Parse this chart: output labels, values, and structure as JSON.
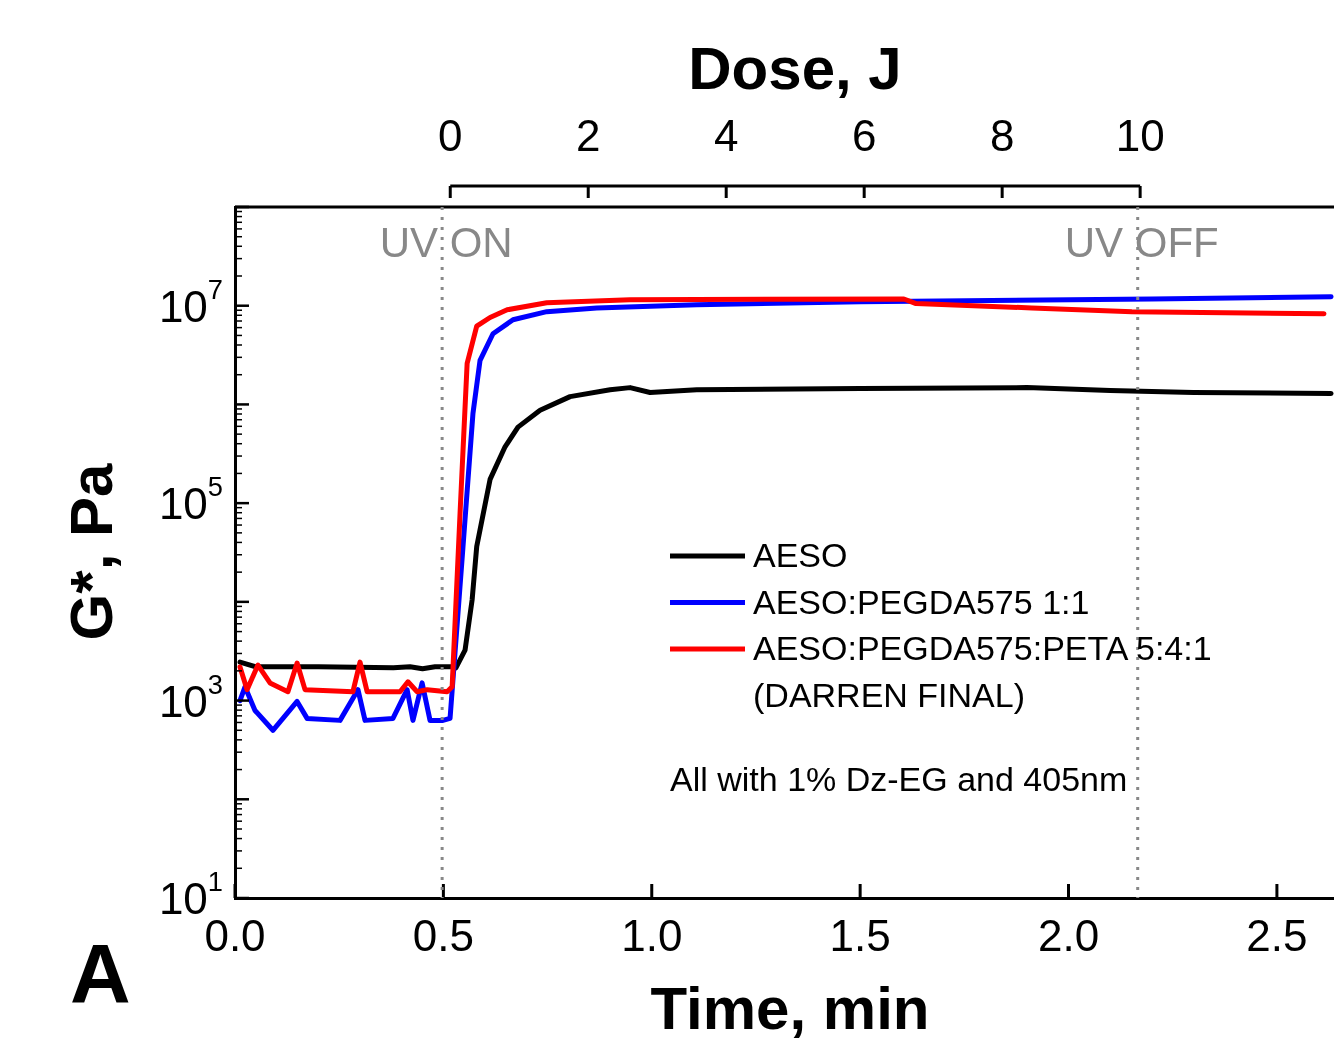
{
  "chart_data": {
    "type": "line",
    "xlabel": "Time, min",
    "ylabel": "G*, Pa",
    "x2label": "Dose, J",
    "xlim": [
      0,
      2.637
    ],
    "xticks": [
      {
        "value": 0,
        "label": "0.0"
      },
      {
        "value": 0.5,
        "label": "0.5"
      },
      {
        "value": 1,
        "label": "1.0"
      },
      {
        "value": 1.5,
        "label": "1.5"
      },
      {
        "value": 2,
        "label": "2.0"
      },
      {
        "value": 2.5,
        "label": "2.5"
      }
    ],
    "x2lim": [
      -3.12,
      12.81
    ],
    "x2ticks": [
      0,
      2,
      4,
      6,
      8,
      10
    ],
    "ylim": [
      10,
      100000000
    ],
    "yticks": [
      {
        "value": 10,
        "label": "10$^{1}$"
      },
      {
        "value": 100,
        "label": null
      },
      {
        "value": 1000,
        "label": "10$^{3}$"
      },
      {
        "value": 10000,
        "label": null
      },
      {
        "value": 100000,
        "label": "10$^{5}$"
      },
      {
        "value": 1000000,
        "label": null
      },
      {
        "value": 10000000,
        "label": "10$^{7}$"
      },
      {
        "value": 100000000,
        "label": null
      }
    ],
    "log": "y",
    "grid": false,
    "legend": "bottom right",
    "marker": "none",
    "line_style": "solid",
    "ref_lines": [
      {
        "axis": "x",
        "value": 0.497,
        "label": "UV ON",
        "color": "#888888",
        "line_style": "dotted"
      },
      {
        "axis": "x",
        "value": 2.166,
        "label": "UV OFF",
        "color": "#888888",
        "line_style": "dotted"
      }
    ],
    "annotations": [
      "All with 1% Dz-EG and 405nm",
      "A"
    ],
    "series": [
      {
        "name": "AESO",
        "color": "#000000",
        "x": [
          0.012,
          0.05,
          0.2,
          0.38,
          0.42,
          0.45,
          0.48,
          0.52,
          0.53,
          0.552,
          0.569,
          0.58,
          0.612,
          0.648,
          0.679,
          0.732,
          0.804,
          0.9,
          0.948,
          0.996,
          1.108,
          1.5,
          1.9,
          2.1,
          2.3,
          2.63
        ],
        "values": [
          2450,
          2200,
          2200,
          2150,
          2200,
          2100,
          2200,
          2200,
          2140,
          3240,
          10500,
          36300,
          174000,
          372000,
          589000,
          871000,
          1200000,
          1410000,
          1480000,
          1320000,
          1410000,
          1450000,
          1480000,
          1380000,
          1320000,
          1290000
        ]
      },
      {
        "name": "AESO:PEGDA575 1:1",
        "color": "#0000ff",
        "x": [
          0.012,
          0.024,
          0.048,
          0.091,
          0.115,
          0.149,
          0.173,
          0.252,
          0.295,
          0.312,
          0.379,
          0.413,
          0.427,
          0.449,
          0.468,
          0.499,
          0.516,
          0.547,
          0.571,
          0.588,
          0.619,
          0.667,
          0.748,
          0.868,
          1.108,
          1.5,
          2.2,
          2.63
        ],
        "values": [
          1000,
          1380,
          794,
          500,
          660,
          980,
          660,
          630,
          1290,
          630,
          660,
          1290,
          630,
          1510,
          630,
          630,
          660,
          36000,
          813000,
          2800000,
          5200000,
          7200000,
          8700000,
          9500000,
          10200000,
          11000000,
          11700000,
          12300000
        ]
      },
      {
        "name": "AESO:PEGDA575:PETA 5:4:1\n(DARREN FINAL)",
        "color": "#ff0000",
        "x": [
          0.012,
          0.029,
          0.055,
          0.084,
          0.127,
          0.149,
          0.168,
          0.283,
          0.3,
          0.317,
          0.396,
          0.415,
          0.437,
          0.461,
          0.509,
          0.521,
          0.54,
          0.557,
          0.58,
          0.612,
          0.653,
          0.748,
          0.948,
          1.605,
          1.634,
          1.912,
          2.152,
          2.613
        ],
        "values": [
          2190,
          1290,
          2290,
          1510,
          1230,
          2400,
          1290,
          1230,
          2450,
          1230,
          1230,
          1550,
          1230,
          1290,
          1230,
          1380,
          79000,
          2600000,
          6200000,
          7600000,
          9100000,
          10700000,
          11500000,
          11700000,
          10500000,
          9500000,
          8700000,
          8300000
        ]
      }
    ]
  }
}
